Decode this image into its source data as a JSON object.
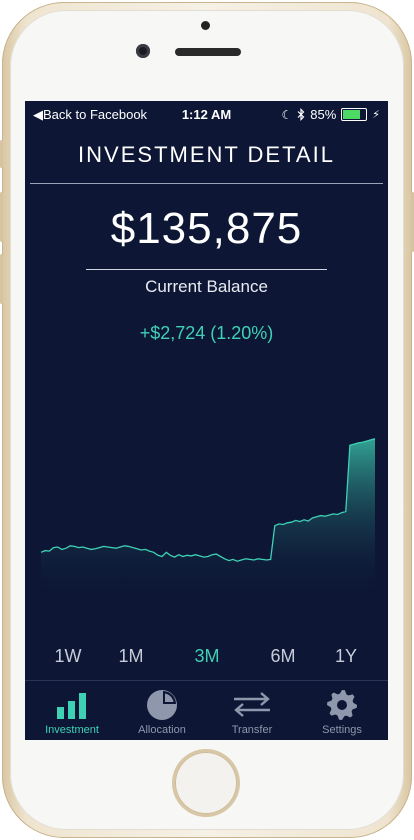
{
  "status_bar": {
    "back_label": "Back to Facebook",
    "time": "1:12 AM",
    "battery": "85%",
    "battery_level": 0.85
  },
  "header": {
    "title": "INVESTMENT DETAIL"
  },
  "summary": {
    "balance": "$135,875",
    "balance_label": "Current Balance",
    "change": "+$2,724 (1.20%)"
  },
  "chart_data": {
    "type": "area",
    "series": [
      {
        "values": [
          108,
          108.3,
          108.2,
          108.8,
          108.9,
          108.5,
          108.7,
          109.1,
          109,
          108.8,
          108.9,
          108.7,
          108.5,
          108.6,
          108.8,
          109,
          108.9,
          108.8,
          108.7,
          108.9,
          109.1,
          109,
          108.8,
          108.6,
          108.4,
          108.5,
          108.2,
          108,
          107.5,
          107.3,
          108,
          107.5,
          107.2,
          107.6,
          107.3,
          107.5,
          107.4,
          107.6,
          107.4,
          107.2,
          107.3,
          107.6,
          107.7,
          107.3,
          106.9,
          106.6,
          106.8,
          106.5,
          106.7,
          106.9,
          106.8,
          106.7,
          106.9,
          106.8,
          106.7,
          106.8,
          112.5,
          112.8,
          112.7,
          113,
          113.1,
          113.4,
          113.2,
          113.5,
          113.3,
          113.8,
          114,
          114.2,
          114.1,
          114.3,
          114.5,
          114.4,
          114.7,
          114.9,
          126.1,
          126.3,
          126.5,
          126.6,
          126.8,
          127,
          127.2
        ]
      }
    ],
    "color": "#3ed1b4",
    "grid": false
  },
  "ranges": {
    "items": [
      "1W",
      "1M",
      "3M",
      "6M",
      "1Y"
    ],
    "active_index": 2
  },
  "tabs": {
    "investment": "Investment",
    "allocation": "Allocation",
    "transfer": "Transfer",
    "settings": "Settings"
  },
  "colors": {
    "background": "#0d1735",
    "accent": "#3ed1b4",
    "inactive": "#8e97ab"
  },
  "icons": {
    "investment": "bar-chart-icon",
    "allocation": "pie-chart-icon",
    "transfer": "transfer-arrows-icon",
    "settings": "gear-icon"
  }
}
